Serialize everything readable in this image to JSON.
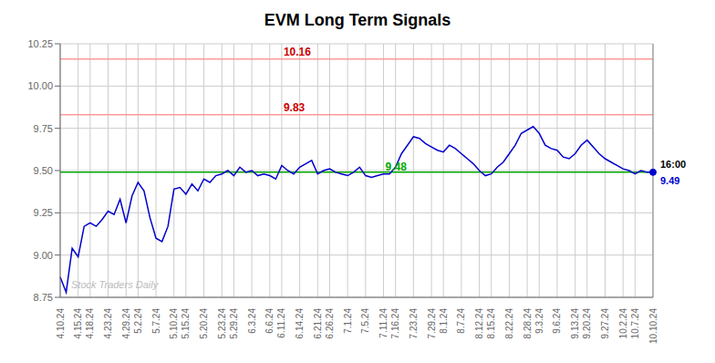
{
  "chart_data": {
    "type": "line",
    "title": "EVM Long Term Signals",
    "categories": [
      "4.10.24",
      null,
      null,
      "4.15.24",
      null,
      "4.18.24",
      null,
      null,
      "4.23.24",
      null,
      null,
      "4.29.24",
      null,
      "5.2.24",
      null,
      null,
      "5.7.24",
      null,
      null,
      "5.10.24",
      null,
      "5.15.24",
      null,
      null,
      "5.20.24",
      null,
      null,
      "5.23.24",
      null,
      "5.29.24",
      null,
      null,
      "6.3.24",
      null,
      null,
      "6.6.24",
      null,
      "6.11.24",
      null,
      null,
      "6.14.24",
      null,
      null,
      "6.21.24",
      null,
      "6.26.24",
      null,
      null,
      "7.1.24",
      null,
      null,
      "7.5.24",
      null,
      null,
      "7.11.24",
      null,
      "7.16.24",
      null,
      null,
      "7.23.24",
      null,
      null,
      "7.29.24",
      null,
      "8.1.24",
      null,
      null,
      "8.7.24",
      null,
      null,
      "8.12.24",
      null,
      "8.15.24",
      null,
      null,
      "8.22.24",
      null,
      null,
      "8.28.24",
      null,
      "9.3.24",
      null,
      null,
      "9.6.24",
      null,
      null,
      "9.13.24",
      null,
      "9.20.24",
      null,
      null,
      "9.27.24",
      null,
      null,
      "10.2.24",
      null,
      "10.7.24",
      null,
      null,
      "10.10.24"
    ],
    "values": [
      8.87,
      8.78,
      9.04,
      8.99,
      9.17,
      9.19,
      9.17,
      9.21,
      9.26,
      9.24,
      9.33,
      9.19,
      9.35,
      9.43,
      9.38,
      9.22,
      9.1,
      9.08,
      9.17,
      9.39,
      9.4,
      9.36,
      9.42,
      9.38,
      9.45,
      9.43,
      9.47,
      9.48,
      9.5,
      9.47,
      9.52,
      9.49,
      9.5,
      9.47,
      9.48,
      9.47,
      9.45,
      9.53,
      9.5,
      9.48,
      9.52,
      9.54,
      9.56,
      9.48,
      9.5,
      9.51,
      9.49,
      9.48,
      9.47,
      9.49,
      9.52,
      9.47,
      9.46,
      9.47,
      9.48,
      9.48,
      9.52,
      9.6,
      9.65,
      9.7,
      9.69,
      9.66,
      9.64,
      9.62,
      9.61,
      9.65,
      9.63,
      9.6,
      9.57,
      9.54,
      9.5,
      9.47,
      9.48,
      9.52,
      9.55,
      9.6,
      9.65,
      9.72,
      9.74,
      9.76,
      9.72,
      9.65,
      9.63,
      9.62,
      9.58,
      9.57,
      9.6,
      9.65,
      9.68,
      9.64,
      9.6,
      9.57,
      9.55,
      9.53,
      9.51,
      9.5,
      9.48,
      9.5,
      9.49,
      9.49
    ],
    "color": "#0000cc",
    "ylim": [
      8.75,
      10.25
    ],
    "yticks": [
      8.75,
      {
        "value": 9.0,
        "label": "9.00"
      },
      9.25,
      {
        "value": 9.5,
        "label": "9.50"
      },
      9.75,
      {
        "value": 10.0,
        "label": "10.00"
      },
      10.25
    ],
    "grid": true,
    "grid_color": "#cccccc",
    "reference_lines": [
      {
        "y": 9.49,
        "color": "#00aa00"
      },
      {
        "y": 9.83,
        "color": "#ff9999"
      },
      {
        "y": 10.16,
        "color": "#ff9999"
      },
      {
        "x": "10.10.24",
        "color": "#888888"
      }
    ],
    "annotations": [
      {
        "text": "10.16",
        "x": "6.11.24",
        "y": 10.16,
        "color": "#cc0000"
      },
      {
        "text": "9.83",
        "x": "6.11.24",
        "y": 9.83,
        "color": "#cc0000"
      },
      {
        "text": "9.48",
        "x": "7.11.24",
        "y": 9.48,
        "color": "#00aa00"
      },
      {
        "text": "16:00",
        "x": "10.10.24",
        "y": 9.49,
        "color": "#000000"
      },
      {
        "text": "9.49",
        "x": "10.10.24",
        "y": 9.49,
        "color": "#0000cc",
        "marker": "o"
      }
    ],
    "watermark": "Stock Traders Daily"
  }
}
